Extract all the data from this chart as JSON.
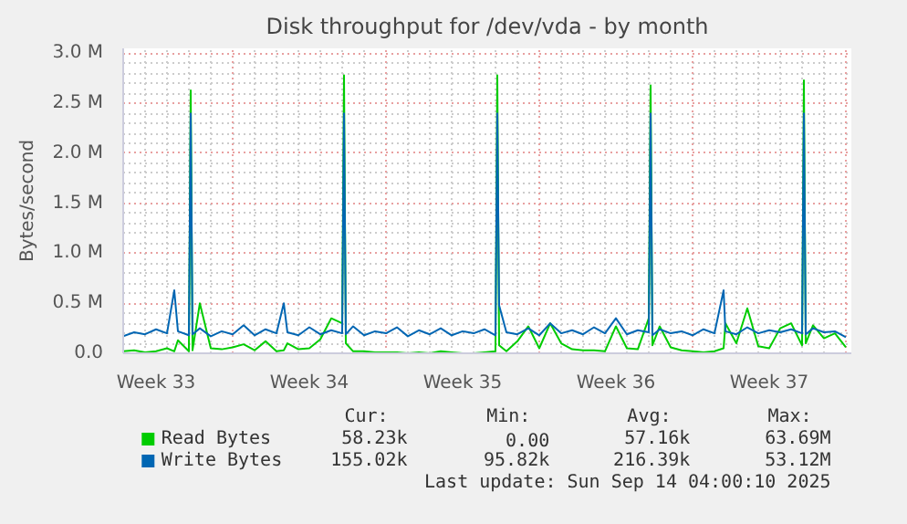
{
  "chart_data": {
    "type": "line",
    "title": "Disk throughput for /dev/vda - by month",
    "ylabel": "Bytes/second",
    "xlim": [
      "2025-08-13T00:00",
      "2025-09-15T06:00"
    ],
    "xticks": [
      {
        "value": "2025-08-14T12:00",
        "label": "Week 33"
      },
      {
        "value": "2025-08-18T00:00",
        "label": null
      },
      {
        "value": "2025-08-21T12:00",
        "label": "Week 34"
      },
      {
        "value": "2025-08-25T00:00",
        "label": null
      },
      {
        "value": "2025-08-28T12:00",
        "label": "Week 35"
      },
      {
        "value": "2025-09-01T00:00",
        "label": null
      },
      {
        "value": "2025-09-04T12:00",
        "label": "Week 36"
      },
      {
        "value": "2025-09-08T00:00",
        "label": null
      },
      {
        "value": "2025-09-11T12:00",
        "label": "Week 37"
      },
      {
        "value": "2025-09-15T00:00",
        "label": null
      }
    ],
    "ylim": [
      0,
      3.05
    ],
    "yticks": [
      {
        "value": 0,
        "label": "0.0"
      },
      {
        "value": 0.5,
        "label": "0.5 M"
      },
      {
        "value": 1.0,
        "label": "1.0 M"
      },
      {
        "value": 1.5,
        "label": "1.5 M"
      },
      {
        "value": 2.0,
        "label": "2.0 M"
      },
      {
        "value": 2.5,
        "label": "2.5 M"
      },
      {
        "value": 3.0,
        "label": "3.0 M"
      }
    ],
    "grid": true,
    "legend": "bottom",
    "x": [
      "2025-08-13T00:00",
      "2025-08-13T12:00",
      "2025-08-14T00:00",
      "2025-08-14T12:00",
      "2025-08-15T00:00",
      "2025-08-15T08:00",
      "2025-08-15T12:00",
      "2025-08-16T00:00",
      "2025-08-16T02:00",
      "2025-08-16T04:00",
      "2025-08-16T12:00",
      "2025-08-17T00:00",
      "2025-08-17T12:00",
      "2025-08-18T00:00",
      "2025-08-18T12:00",
      "2025-08-19T00:00",
      "2025-08-19T12:00",
      "2025-08-20T00:00",
      "2025-08-20T08:00",
      "2025-08-20T12:00",
      "2025-08-21T00:00",
      "2025-08-21T12:00",
      "2025-08-22T00:00",
      "2025-08-22T12:00",
      "2025-08-23T00:00",
      "2025-08-23T02:00",
      "2025-08-23T04:00",
      "2025-08-23T12:00",
      "2025-08-24T00:00",
      "2025-08-24T12:00",
      "2025-08-25T00:00",
      "2025-08-25T12:00",
      "2025-08-26T00:00",
      "2025-08-26T12:00",
      "2025-08-27T00:00",
      "2025-08-27T12:00",
      "2025-08-28T00:00",
      "2025-08-28T12:00",
      "2025-08-29T00:00",
      "2025-08-29T12:00",
      "2025-08-30T00:00",
      "2025-08-30T02:00",
      "2025-08-30T04:00",
      "2025-08-30T12:00",
      "2025-08-31T00:00",
      "2025-08-31T12:00",
      "2025-09-01T00:00",
      "2025-09-01T12:00",
      "2025-09-02T00:00",
      "2025-09-02T12:00",
      "2025-09-03T00:00",
      "2025-09-03T12:00",
      "2025-09-04T00:00",
      "2025-09-04T12:00",
      "2025-09-05T00:00",
      "2025-09-05T12:00",
      "2025-09-06T00:00",
      "2025-09-06T02:00",
      "2025-09-06T04:00",
      "2025-09-06T12:00",
      "2025-09-07T00:00",
      "2025-09-07T12:00",
      "2025-09-08T00:00",
      "2025-09-08T12:00",
      "2025-09-09T00:00",
      "2025-09-09T10:00",
      "2025-09-09T12:00",
      "2025-09-10T00:00",
      "2025-09-10T12:00",
      "2025-09-11T00:00",
      "2025-09-11T12:00",
      "2025-09-12T00:00",
      "2025-09-12T12:00",
      "2025-09-13T00:00",
      "2025-09-13T02:00",
      "2025-09-13T04:00",
      "2025-09-13T12:00",
      "2025-09-14T00:00",
      "2025-09-14T12:00",
      "2025-09-15T00:00"
    ],
    "series": [
      {
        "name": "Read Bytes",
        "color": "#00cc00",
        "values": [
          0.02,
          0.03,
          0.01,
          0.02,
          0.05,
          0.02,
          0.13,
          0.02,
          2.63,
          0.03,
          0.5,
          0.05,
          0.04,
          0.06,
          0.09,
          0.03,
          0.12,
          0.02,
          0.03,
          0.1,
          0.04,
          0.05,
          0.14,
          0.35,
          0.3,
          2.78,
          0.1,
          0.02,
          0.02,
          0.01,
          0.01,
          0.01,
          0.0,
          0.01,
          0.0,
          0.02,
          0.01,
          0.0,
          0.0,
          0.01,
          0.02,
          2.78,
          0.08,
          0.02,
          0.12,
          0.27,
          0.05,
          0.3,
          0.1,
          0.04,
          0.03,
          0.03,
          0.02,
          0.27,
          0.05,
          0.04,
          0.35,
          2.68,
          0.08,
          0.27,
          0.06,
          0.03,
          0.02,
          0.01,
          0.02,
          0.05,
          0.3,
          0.1,
          0.45,
          0.07,
          0.05,
          0.25,
          0.3,
          0.08,
          2.73,
          0.1,
          0.28,
          0.15,
          0.2,
          0.06
        ]
      },
      {
        "name": "Write Bytes",
        "color": "#0066b3",
        "values": [
          0.17,
          0.21,
          0.19,
          0.24,
          0.2,
          0.63,
          0.22,
          0.18,
          2.4,
          0.19,
          0.25,
          0.17,
          0.22,
          0.19,
          0.28,
          0.18,
          0.24,
          0.2,
          0.5,
          0.21,
          0.18,
          0.26,
          0.19,
          0.23,
          0.2,
          2.4,
          0.19,
          0.27,
          0.18,
          0.22,
          0.2,
          0.26,
          0.17,
          0.23,
          0.19,
          0.25,
          0.18,
          0.22,
          0.2,
          0.24,
          0.18,
          2.4,
          0.48,
          0.21,
          0.19,
          0.25,
          0.18,
          0.3,
          0.2,
          0.23,
          0.19,
          0.26,
          0.2,
          0.35,
          0.19,
          0.23,
          0.21,
          2.4,
          0.18,
          0.24,
          0.2,
          0.22,
          0.18,
          0.24,
          0.2,
          0.63,
          0.22,
          0.19,
          0.26,
          0.2,
          0.23,
          0.21,
          0.24,
          0.2,
          2.4,
          0.19,
          0.25,
          0.21,
          0.22,
          0.16
        ]
      }
    ],
    "annotations": [
      "Cur:",
      "Min:",
      "Avg:",
      "Max:",
      "58.23k",
      "0.00",
      "57.16k",
      "63.69M",
      "155.02k",
      "95.82k",
      "216.39k",
      "53.12M",
      "Last update: Sun Sep 14 04:00:10 2025"
    ]
  }
}
